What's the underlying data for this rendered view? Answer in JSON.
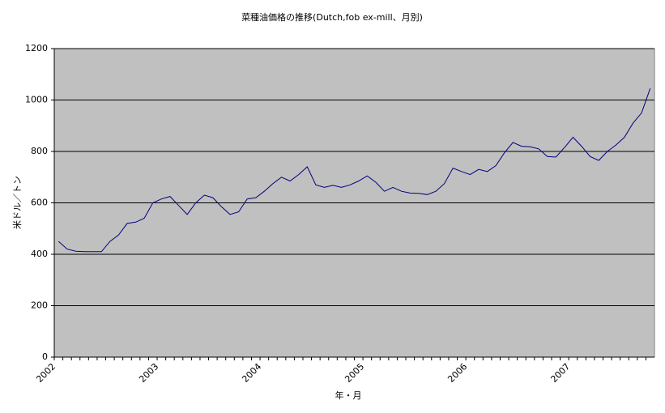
{
  "chart_data": {
    "type": "line",
    "title": "菜種油価格の推移(Dutch,fob ex-mill、月別)",
    "x_label": "年・月",
    "y_label": "米ドル／トン",
    "categories": [
      "2002",
      null,
      null,
      null,
      null,
      null,
      null,
      null,
      null,
      null,
      null,
      null,
      "2003",
      null,
      null,
      null,
      null,
      null,
      null,
      null,
      null,
      null,
      null,
      null,
      "2004",
      null,
      null,
      null,
      null,
      null,
      null,
      null,
      null,
      null,
      null,
      null,
      "2005",
      null,
      null,
      null,
      null,
      null,
      null,
      null,
      null,
      null,
      null,
      null,
      "2006",
      null,
      null,
      null,
      null,
      null,
      null,
      null,
      null,
      null,
      null,
      null,
      "2007",
      null,
      null,
      null,
      null,
      null,
      null,
      null,
      null,
      null
    ],
    "series": [
      {
        "color": "#000080",
        "values": [
          450,
          420,
          412,
          410,
          410,
          410,
          450,
          475,
          520,
          525,
          540,
          600,
          615,
          625,
          590,
          555,
          600,
          630,
          620,
          585,
          555,
          565,
          615,
          620,
          645,
          675,
          700,
          685,
          710,
          740,
          670,
          660,
          668,
          660,
          670,
          685,
          705,
          680,
          645,
          660,
          645,
          638,
          637,
          632,
          645,
          675,
          735,
          722,
          710,
          730,
          722,
          745,
          795,
          835,
          820,
          818,
          810,
          780,
          778,
          815,
          855,
          820,
          780,
          765,
          800,
          825,
          855,
          910,
          950,
          1045
        ]
      }
    ],
    "ylim": [
      0,
      1200
    ],
    "yticks": [
      0,
      200,
      400,
      600,
      800,
      1000,
      1200
    ],
    "grid": true,
    "plot_background": "#c0c0c0"
  }
}
